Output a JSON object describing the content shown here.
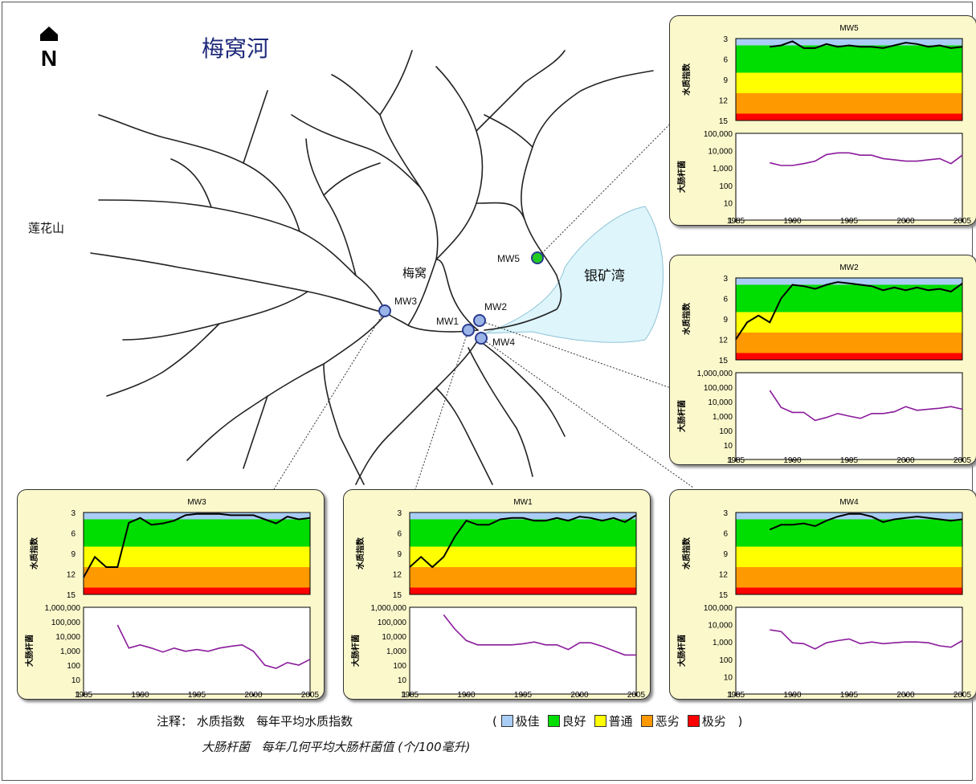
{
  "map": {
    "title": "梅窝河",
    "north_label": "N",
    "places": {
      "lotus_hill": "莲花山",
      "mui_wo": "梅窝",
      "silvermine_bay": "银矿湾"
    },
    "stations": [
      {
        "id": "MW1",
        "label": "MW1",
        "color": "#9ab4e8"
      },
      {
        "id": "MW2",
        "label": "MW2",
        "color": "#9ab4e8"
      },
      {
        "id": "MW3",
        "label": "MW3",
        "color": "#9ab4e8"
      },
      {
        "id": "MW4",
        "label": "MW4",
        "color": "#9ab4e8"
      },
      {
        "id": "MW5",
        "label": "MW5",
        "color": "#22cc22"
      }
    ],
    "water_color": "#ddf5fb",
    "river_color": "#222222"
  },
  "wqi_bands": [
    {
      "label": "极佳",
      "color": "#a9cdf5",
      "from": 3,
      "to": 4
    },
    {
      "label": "良好",
      "color": "#00dd00",
      "from": 4,
      "to": 8
    },
    {
      "label": "普通",
      "color": "#ffff00",
      "from": 8,
      "to": 11
    },
    {
      "label": "恶劣",
      "color": "#ff9900",
      "from": 11,
      "to": 14
    },
    {
      "label": "极劣",
      "color": "#ff0000",
      "from": 14,
      "to": 15
    }
  ],
  "chart_data": [
    {
      "type": "line",
      "title": "MW5",
      "top_ylabel": "水质指数",
      "bottom_ylabel": "大肠杆菌",
      "wqi_ylim": [
        3,
        15
      ],
      "wqi_ticks": [
        3,
        6,
        9,
        12,
        15
      ],
      "ecoli_ylim": [
        1,
        100000
      ],
      "ecoli_ticks": [
        "1",
        "10",
        "100",
        "1,000",
        "10,000",
        "100,000"
      ],
      "xlim": [
        1985,
        2005
      ],
      "xticks": [
        1985,
        1990,
        1995,
        2000,
        2005
      ],
      "x": [
        1988,
        1989,
        1990,
        1991,
        1992,
        1993,
        1994,
        1995,
        1996,
        1997,
        1998,
        1999,
        2000,
        2001,
        2002,
        2003,
        2004,
        2005
      ],
      "wqi": [
        4.2,
        4.0,
        3.4,
        4.4,
        4.4,
        3.8,
        4.2,
        4.0,
        4.2,
        4.2,
        4.4,
        4.0,
        3.6,
        3.8,
        4.2,
        4.0,
        4.4,
        4.2
      ],
      "ecoli": [
        2000,
        1400,
        1400,
        1800,
        2500,
        6000,
        7500,
        7500,
        5500,
        5500,
        3500,
        3000,
        2500,
        2500,
        3000,
        3500,
        1800,
        5500
      ]
    },
    {
      "type": "line",
      "title": "MW2",
      "top_ylabel": "水质指数",
      "bottom_ylabel": "大肠杆菌",
      "wqi_ylim": [
        3,
        15
      ],
      "wqi_ticks": [
        3,
        6,
        9,
        12,
        15
      ],
      "ecoli_ylim": [
        1,
        1000000
      ],
      "ecoli_ticks": [
        "1",
        "10",
        "100",
        "1,000",
        "10,000",
        "100,000",
        "1,000,000"
      ],
      "xlim": [
        1985,
        2005
      ],
      "xticks": [
        1985,
        1990,
        1995,
        2000,
        2005
      ],
      "x": [
        1985,
        1986,
        1987,
        1988,
        1989,
        1990,
        1991,
        1992,
        1993,
        1994,
        1995,
        1996,
        1997,
        1998,
        1999,
        2000,
        2001,
        2002,
        2003,
        2004,
        2005
      ],
      "wqi": [
        12,
        9.5,
        8.5,
        9.5,
        6,
        4,
        4.2,
        4.6,
        4,
        3.6,
        3.8,
        4,
        4.2,
        4.8,
        4.4,
        4.8,
        4.4,
        4.8,
        4.6,
        5,
        3.8
      ],
      "ecoli": [
        null,
        null,
        null,
        60000,
        4000,
        1800,
        1800,
        500,
        800,
        1500,
        1000,
        700,
        1500,
        1500,
        2000,
        4500,
        2500,
        3000,
        3500,
        4500,
        3000
      ]
    },
    {
      "type": "line",
      "title": "MW3",
      "top_ylabel": "水质指数",
      "bottom_ylabel": "大肠杆菌",
      "wqi_ylim": [
        3,
        15
      ],
      "wqi_ticks": [
        3,
        6,
        9,
        12,
        15
      ],
      "ecoli_ylim": [
        1,
        1000000
      ],
      "ecoli_ticks": [
        "1",
        "10",
        "100",
        "1,000",
        "10,000",
        "100,000",
        "1,000,000"
      ],
      "xlim": [
        1985,
        2005
      ],
      "xticks": [
        1985,
        1990,
        1995,
        2000,
        2005
      ],
      "x": [
        1985,
        1986,
        1987,
        1988,
        1989,
        1990,
        1991,
        1992,
        1993,
        1994,
        1995,
        1996,
        1997,
        1998,
        1999,
        2000,
        2001,
        2002,
        2003,
        2004,
        2005
      ],
      "wqi": [
        12.5,
        9.5,
        11,
        11,
        4.5,
        3.8,
        4.8,
        4.6,
        4.2,
        3.4,
        3.2,
        3.2,
        3.2,
        3.4,
        3.4,
        3.4,
        4,
        4.6,
        3.6,
        4,
        3.8
      ],
      "ecoli": [
        null,
        null,
        null,
        60000,
        1500,
        2500,
        1500,
        800,
        1500,
        900,
        1200,
        900,
        1500,
        2000,
        2500,
        900,
        100,
        60,
        150,
        100,
        250
      ]
    },
    {
      "type": "line",
      "title": "MW1",
      "top_ylabel": "水质指数",
      "bottom_ylabel": "大肠杆菌",
      "wqi_ylim": [
        3,
        15
      ],
      "wqi_ticks": [
        3,
        6,
        9,
        12,
        15
      ],
      "ecoli_ylim": [
        1,
        1000000
      ],
      "ecoli_ticks": [
        "1",
        "10",
        "100",
        "1,000",
        "10,000",
        "100,000",
        "1,000,000"
      ],
      "xlim": [
        1985,
        2005
      ],
      "xticks": [
        1985,
        1990,
        1995,
        2000,
        2005
      ],
      "x": [
        1985,
        1986,
        1987,
        1988,
        1989,
        1990,
        1991,
        1992,
        1993,
        1994,
        1995,
        1996,
        1997,
        1998,
        1999,
        2000,
        2001,
        2002,
        2003,
        2004,
        2005
      ],
      "wqi": [
        11,
        9.5,
        11,
        9.5,
        6.5,
        4.2,
        4.8,
        4.8,
        4,
        3.8,
        3.8,
        4.2,
        4.2,
        3.8,
        4.2,
        3.6,
        3.8,
        4.2,
        3.8,
        4.4,
        3.4
      ],
      "ecoli": [
        null,
        null,
        null,
        300000,
        30000,
        5000,
        2500,
        2500,
        2500,
        2500,
        3000,
        4000,
        2500,
        2500,
        1200,
        3500,
        3500,
        2000,
        1000,
        500,
        500
      ]
    },
    {
      "type": "line",
      "title": "MW4",
      "top_ylabel": "水质指数",
      "bottom_ylabel": "大肠杆菌",
      "wqi_ylim": [
        3,
        15
      ],
      "wqi_ticks": [
        3,
        6,
        9,
        12,
        15
      ],
      "ecoli_ylim": [
        1,
        100000
      ],
      "ecoli_ticks": [
        "1",
        "10",
        "100",
        "1,000",
        "10,000",
        "100,000"
      ],
      "xlim": [
        1985,
        2005
      ],
      "xticks": [
        1985,
        1990,
        1995,
        2000,
        2005
      ],
      "x": [
        1988,
        1989,
        1990,
        1991,
        1992,
        1993,
        1994,
        1995,
        1996,
        1997,
        1998,
        1999,
        2000,
        2001,
        2002,
        2003,
        2004,
        2005
      ],
      "wqi": [
        5.5,
        4.8,
        4.8,
        4.6,
        5,
        4.2,
        3.6,
        3.2,
        3.2,
        3.6,
        4.4,
        4,
        3.8,
        3.6,
        3.8,
        4,
        4.2,
        4
      ],
      "ecoli": [
        5000,
        4000,
        900,
        800,
        400,
        900,
        1200,
        1500,
        800,
        1000,
        800,
        900,
        1000,
        1000,
        900,
        600,
        500,
        1200
      ]
    }
  ],
  "notes": {
    "prefix": "注释：",
    "wqi_term": "水质指数",
    "wqi_desc": "每年平均水质指数",
    "legend_open": "(",
    "legend_close": ")",
    "ecoli_term": "大肠杆菌",
    "ecoli_desc": "每年几何平均大肠杆菌值 (个/100毫升)"
  }
}
